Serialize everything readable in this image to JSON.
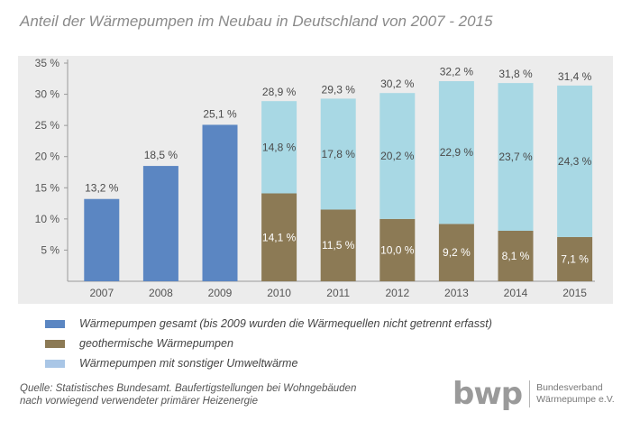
{
  "title": "Anteil der Wärmepumpen im Neubau in Deutschland von 2007 - 2015",
  "colors": {
    "gesamt": "#5b86c2",
    "geothermisch": "#8c7a55",
    "umwelt": "#a8d8e4",
    "legend_umwelt": "#a9c6e6"
  },
  "legend": [
    {
      "label": "Wärmepumpen gesamt (bis 2009 wurden die Wärmequellen nicht getrennt erfasst)",
      "color": "#5b86c2"
    },
    {
      "label": "geothermische Wärmepumpen",
      "color": "#8c7a55"
    },
    {
      "label": "Wärmepumpen mit sonstiger Umweltwärme",
      "color": "#a9c6e6"
    }
  ],
  "source": {
    "line1": "Quelle: Statistisches Bundesamt. Baufertigstellungen bei Wohngebäuden",
    "line2": "nach vorwiegend verwendeter primärer Heizenergie"
  },
  "logo": {
    "mark": "bwp",
    "line1": "Bundesverband",
    "line2": "Wärmepumpe e.V."
  },
  "chart_data": {
    "type": "bar",
    "stacked": true,
    "categories": [
      "2007",
      "2008",
      "2009",
      "2010",
      "2011",
      "2012",
      "2013",
      "2014",
      "2015"
    ],
    "y_ticks": [
      "5 %",
      "10 %",
      "15 %",
      "20 %",
      "25 %",
      "30 %",
      "35 %"
    ],
    "ylim": [
      0,
      35
    ],
    "grid": false,
    "series": [
      {
        "name": "Wärmepumpen gesamt (bis 2009 wurden die Wärmequellen nicht getrennt erfasst)",
        "color": "#5b86c2",
        "values": [
          13.2,
          18.5,
          25.1,
          null,
          null,
          null,
          null,
          null,
          null
        ],
        "labels": [
          "13,2 %",
          "18,5 %",
          "25,1 %",
          "",
          "",
          "",
          "",
          "",
          ""
        ]
      },
      {
        "name": "geothermische Wärmepumpen",
        "color": "#8c7a55",
        "values": [
          null,
          null,
          null,
          14.1,
          11.5,
          10.0,
          9.2,
          8.1,
          7.1
        ],
        "labels": [
          "",
          "",
          "",
          "14,1 %",
          "11,5 %",
          "10,0 %",
          "9,2 %",
          "8,1 %",
          "7,1 %"
        ]
      },
      {
        "name": "Wärmepumpen mit sonstiger Umweltwärme",
        "color": "#a8d8e4",
        "values": [
          null,
          null,
          null,
          14.8,
          17.8,
          20.2,
          22.9,
          23.7,
          24.3
        ],
        "labels": [
          "",
          "",
          "",
          "14,8 %",
          "17,8 %",
          "20,2 %",
          "22,9 %",
          "23,7 %",
          "24,3 %"
        ]
      }
    ],
    "totals": [
      null,
      null,
      null,
      28.9,
      29.3,
      30.2,
      32.2,
      31.8,
      31.4
    ],
    "total_labels": [
      "",
      "",
      "",
      "28,9 %",
      "29,3 %",
      "30,2 %",
      "32,2 %",
      "31,8 %",
      "31,4 %"
    ]
  }
}
